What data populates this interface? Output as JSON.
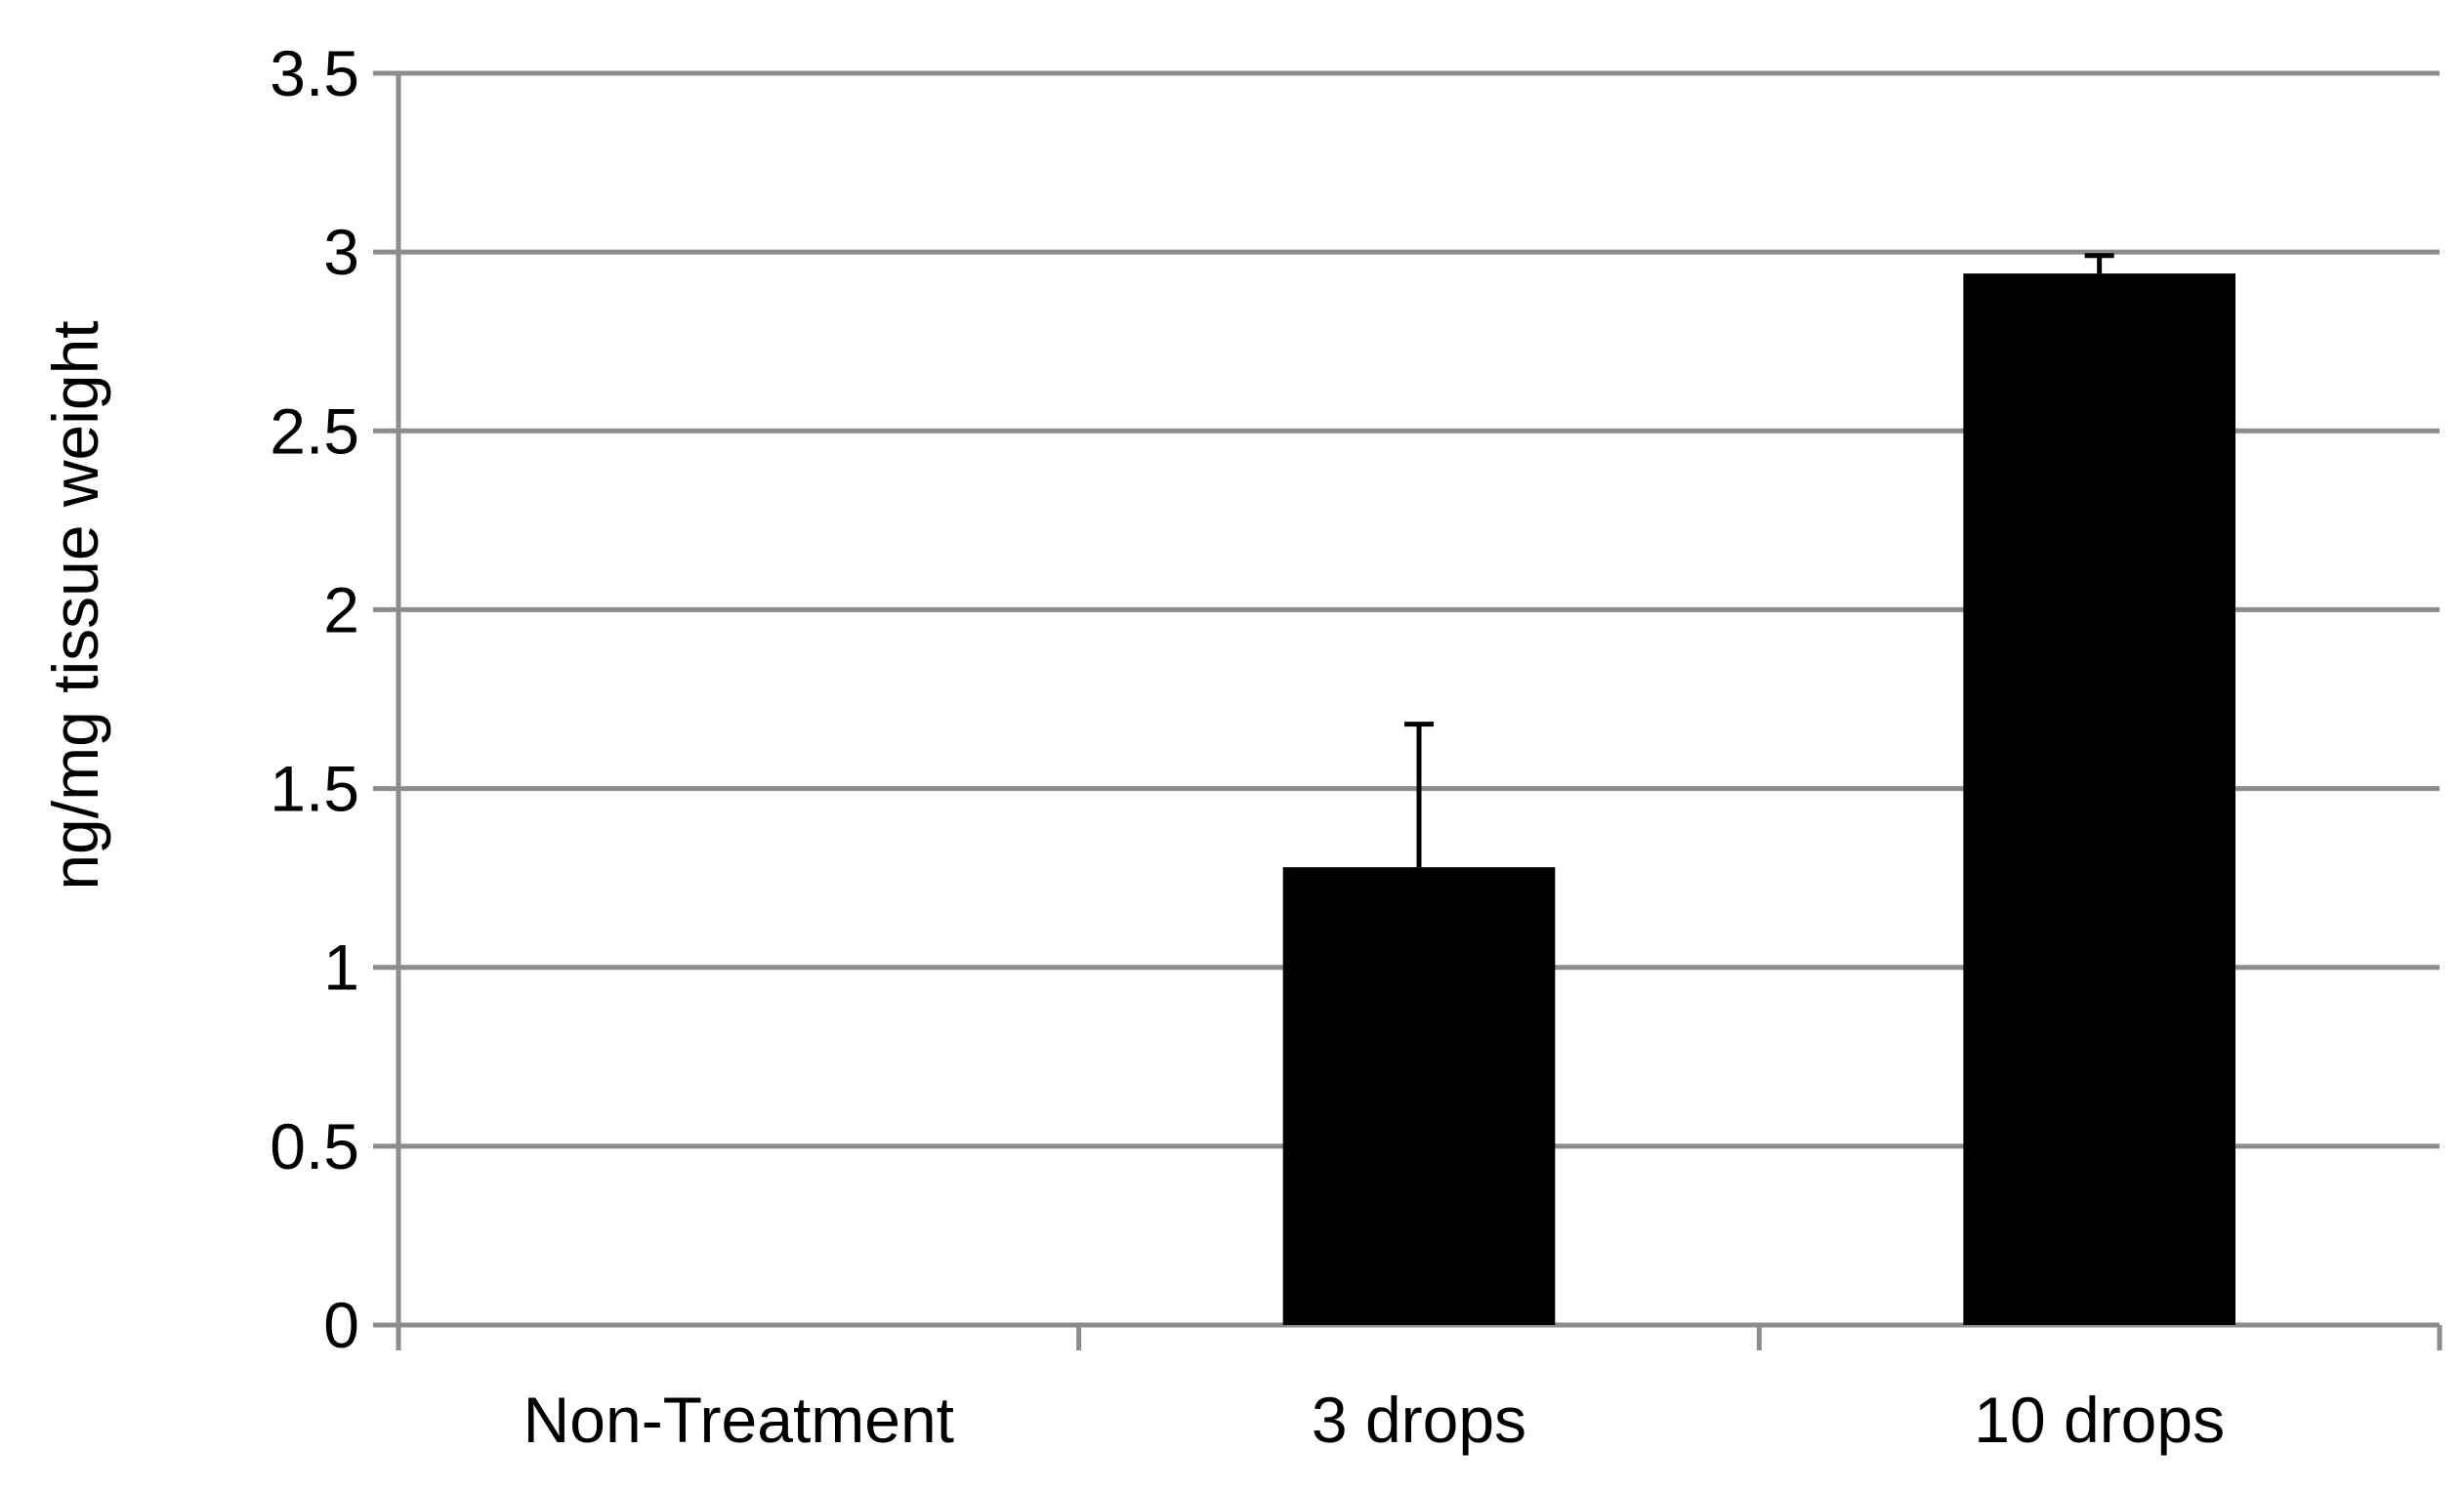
{
  "chart_data": {
    "type": "bar",
    "title": "",
    "xlabel": "",
    "ylabel": "ng/mg tissue weight",
    "categories": [
      "Non-Treatment",
      "3 drops",
      "10 drops"
    ],
    "values": [
      0,
      1.28,
      2.94
    ],
    "error_plus": [
      0,
      0.4,
      0.05
    ],
    "ylim": [
      0,
      3.5
    ],
    "yticks": [
      "0",
      "0.5",
      "1",
      "1.5",
      "2",
      "2.5",
      "3",
      "3.5"
    ],
    "grid": true,
    "legend": "none",
    "colors": {
      "bar": "#000000",
      "grid": "#8c8c8c",
      "axis": "#8c8c8c",
      "error_bar": "#000000"
    }
  }
}
